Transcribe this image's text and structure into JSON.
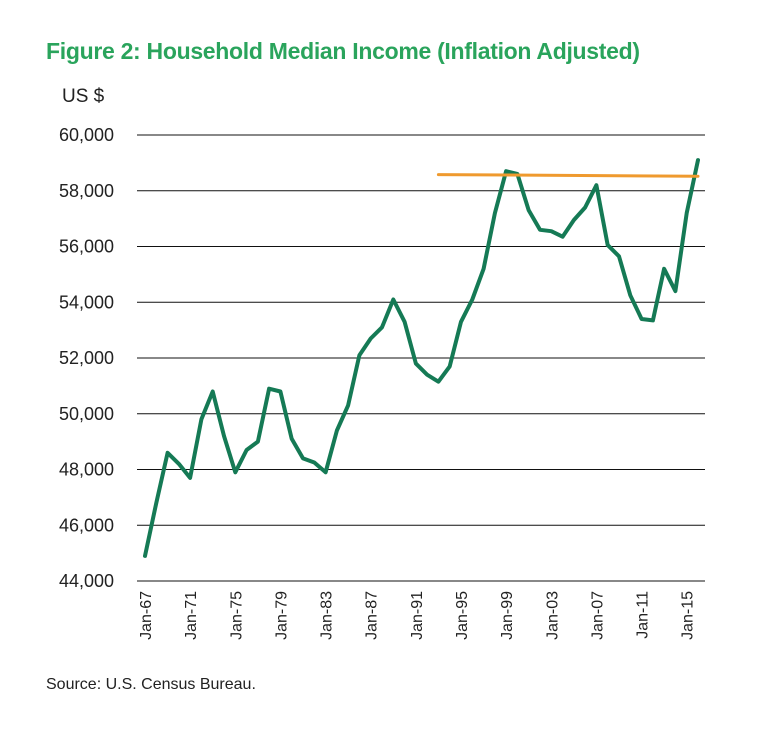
{
  "chart_data": {
    "type": "line",
    "title": "Figure 2: Household Median Income (Inflation Adjusted)",
    "ylabel": "US $",
    "xlabel": "",
    "source": "Source: U.S. Census Bureau.",
    "ylim": [
      44000,
      60000
    ],
    "yticks": [
      "44,000",
      "46,000",
      "48,000",
      "50,000",
      "52,000",
      "54,000",
      "56,000",
      "58,000",
      "60,000"
    ],
    "ytick_values": [
      44000,
      46000,
      48000,
      50000,
      52000,
      54000,
      56000,
      58000,
      60000
    ],
    "xticks": [
      "Jan-67",
      "Jan-71",
      "Jan-75",
      "Jan-79",
      "Jan-83",
      "Jan-87",
      "Jan-91",
      "Jan-95",
      "Jan-99",
      "Jan-03",
      "Jan-07",
      "Jan-11",
      "Jan-15"
    ],
    "xtick_years": [
      1967,
      1971,
      1975,
      1979,
      1983,
      1987,
      1991,
      1995,
      1999,
      2003,
      2007,
      2011,
      2015
    ],
    "x": [
      1967,
      1968,
      1969,
      1970,
      1971,
      1972,
      1973,
      1974,
      1975,
      1976,
      1977,
      1978,
      1979,
      1980,
      1981,
      1982,
      1983,
      1984,
      1985,
      1986,
      1987,
      1988,
      1989,
      1990,
      1991,
      1992,
      1993,
      1994,
      1995,
      1996,
      1997,
      1998,
      1999,
      2000,
      2001,
      2002,
      2003,
      2004,
      2005,
      2006,
      2007,
      2008,
      2009,
      2010,
      2011,
      2012,
      2013,
      2014,
      2015,
      2016
    ],
    "grid": true,
    "series": [
      {
        "values": [
          44900,
          46800,
          48600,
          48200,
          47700,
          49800,
          50800,
          49200,
          47900,
          48700,
          49000,
          50900,
          50800,
          49100,
          48400,
          48250,
          47900,
          49400,
          50300,
          52100,
          52700,
          53100,
          54100,
          53300,
          51800,
          51400,
          51150,
          51700,
          53300,
          54100,
          55200,
          57200,
          58700,
          58600,
          57300,
          56600,
          56550,
          56350,
          56950,
          57400,
          58200,
          56050,
          55650,
          54250,
          53400,
          53350,
          55200,
          54400,
          57200,
          59100
        ],
        "color": "#157a55"
      },
      {
        "type": "reference-line",
        "x": [
          1993,
          2016
        ],
        "values": [
          58580,
          58520
        ],
        "color": "#ef9a2e"
      }
    ]
  }
}
